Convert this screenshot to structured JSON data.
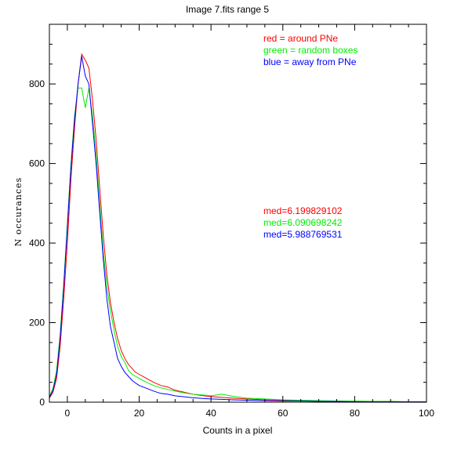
{
  "chart_data": {
    "type": "line",
    "title": "Image 7.fits   range 5",
    "xlabel": "Counts in a pixel",
    "ylabel": "N occurances",
    "xlim": [
      -5,
      100
    ],
    "ylim": [
      0,
      950
    ],
    "x_ticks": [
      0,
      20,
      40,
      60,
      80,
      100
    ],
    "y_ticks": [
      0,
      200,
      400,
      600,
      800
    ],
    "grid": false,
    "legend": [
      {
        "label": "red = around PNe",
        "color": "#ff0000"
      },
      {
        "label": "green = random boxes",
        "color": "#00ee00"
      },
      {
        "label": "blue = away from PNe",
        "color": "#0000ff"
      }
    ],
    "annotations": [
      {
        "text": "med=6.199829102",
        "color": "#ff0000"
      },
      {
        "text": "med=6.090698242",
        "color": "#00ee00"
      },
      {
        "text": "med=5.988769531",
        "color": "#0000ff"
      }
    ],
    "series": [
      {
        "color": "#ff0000",
        "x": [
          -5,
          -4,
          -3,
          -2,
          -1,
          0,
          1,
          2,
          3,
          4,
          5,
          6,
          7,
          8,
          9,
          10,
          11,
          12,
          13,
          14,
          15,
          16,
          17,
          18,
          19,
          20,
          22,
          24,
          26,
          28,
          30,
          32,
          35,
          38,
          40,
          43,
          46,
          50,
          55,
          60,
          65,
          70,
          75,
          80,
          85,
          90,
          95,
          100
        ],
        "y": [
          10,
          25,
          60,
          140,
          260,
          400,
          560,
          690,
          800,
          875,
          860,
          840,
          760,
          660,
          540,
          420,
          320,
          250,
          200,
          160,
          130,
          110,
          95,
          85,
          75,
          70,
          60,
          50,
          42,
          38,
          30,
          26,
          20,
          16,
          14,
          12,
          10,
          8,
          6,
          5,
          4,
          3,
          2,
          2,
          1,
          1,
          1,
          1
        ]
      },
      {
        "color": "#00ee00",
        "x": [
          -5,
          -4,
          -3,
          -2,
          -1,
          0,
          1,
          2,
          3,
          4,
          5,
          6,
          7,
          8,
          9,
          10,
          11,
          12,
          13,
          14,
          15,
          16,
          17,
          18,
          19,
          20,
          22,
          24,
          26,
          28,
          30,
          32,
          35,
          38,
          40,
          43,
          46,
          50,
          55,
          60,
          65,
          70,
          75,
          80,
          85,
          90,
          95,
          100
        ],
        "y": [
          15,
          35,
          80,
          170,
          300,
          450,
          600,
          720,
          790,
          790,
          740,
          790,
          720,
          620,
          500,
          380,
          290,
          230,
          180,
          140,
          115,
          100,
          80,
          70,
          65,
          60,
          50,
          42,
          36,
          32,
          28,
          24,
          20,
          18,
          16,
          20,
          15,
          10,
          8,
          6,
          5,
          4,
          3,
          3,
          2,
          2,
          1,
          1
        ]
      },
      {
        "color": "#0000ff",
        "x": [
          -5,
          -4,
          -3,
          -2,
          -1,
          0,
          1,
          2,
          3,
          4,
          5,
          6,
          7,
          8,
          9,
          10,
          11,
          12,
          13,
          14,
          15,
          16,
          17,
          18,
          19,
          20,
          22,
          24,
          26,
          28,
          30,
          32,
          35,
          38,
          40,
          43,
          46,
          50,
          55,
          60,
          65,
          70,
          75,
          80,
          85,
          90,
          95,
          100
        ],
        "y": [
          12,
          30,
          70,
          160,
          290,
          440,
          590,
          710,
          800,
          870,
          820,
          800,
          700,
          600,
          480,
          360,
          260,
          190,
          150,
          110,
          90,
          75,
          65,
          55,
          48,
          42,
          35,
          28,
          22,
          20,
          16,
          14,
          11,
          9,
          8,
          7,
          6,
          5,
          4,
          3,
          3,
          2,
          2,
          1,
          1,
          1,
          1,
          1
        ]
      }
    ]
  }
}
